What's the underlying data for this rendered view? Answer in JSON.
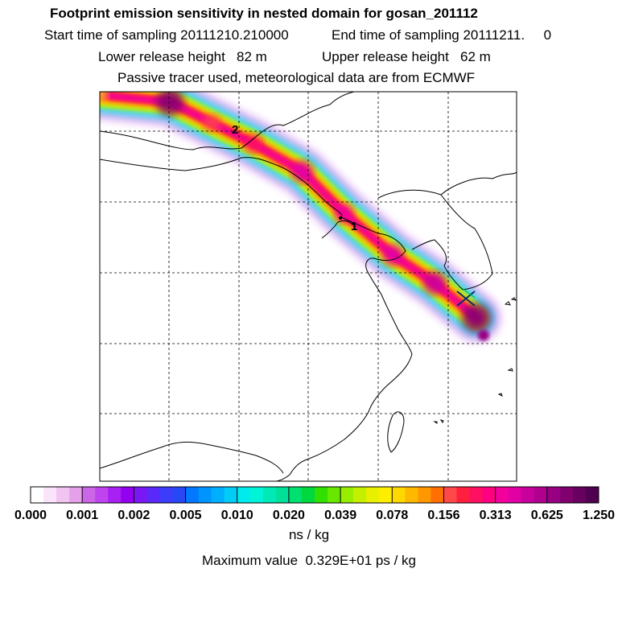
{
  "header": {
    "title": "Footprint emission sensitivity in nested domain for gosan_201112",
    "start_time": "Start time of sampling 20111210.210000",
    "end_time": "End time of sampling 20111211.     0",
    "lower_release": "Lower release height   82 m",
    "upper_release": "Upper release height   62 m",
    "tracer_info": "Passive tracer used, meteorological data are from ECMWF"
  },
  "footer": {
    "units": "ns / kg",
    "max_value": "Maximum value  0.329E+01 ps / kg"
  },
  "chart_data": {
    "type": "heatmap",
    "title": "Footprint emission sensitivity in nested domain for gosan_201112",
    "colorbar": {
      "unit": "ns / kg",
      "tick_labels": [
        "0.000",
        "0.001",
        "0.002",
        "0.005",
        "0.010",
        "0.020",
        "0.039",
        "0.078",
        "0.156",
        "0.313",
        "0.625",
        "1.250"
      ],
      "colors": [
        "#ffffff",
        "#fbe4fb",
        "#f2c4f2",
        "#e6a0ea",
        "#cc66e8",
        "#bf44ee",
        "#a820f2",
        "#9400f0",
        "#7a18f4",
        "#5a28f8",
        "#3c3cfa",
        "#2848f6",
        "#0078ff",
        "#0094ff",
        "#00b0ff",
        "#00ccf6",
        "#00ecec",
        "#00f4d8",
        "#00eab8",
        "#00e098",
        "#00e070",
        "#00d840",
        "#30e000",
        "#68e800",
        "#98ee00",
        "#c4f000",
        "#e8f000",
        "#ffee00",
        "#ffd800",
        "#ffb800",
        "#ff9800",
        "#ff7000",
        "#ff4848",
        "#ff2040",
        "#ff1060",
        "#ff0080",
        "#f4009c",
        "#e000a4",
        "#c8009c",
        "#b00090",
        "#980084",
        "#800070",
        "#680060",
        "#500050"
      ]
    },
    "plume_path": [
      {
        "lon": 1.0,
        "lat": 1.2,
        "value": 0.08
      },
      {
        "lon": 2.0,
        "lat": 1.3,
        "value": 0.9
      },
      {
        "lon": 2.6,
        "lat": 1.6,
        "value": 0.2
      },
      {
        "lon": 3.2,
        "lat": 1.9,
        "value": 0.3
      },
      {
        "lon": 3.9,
        "lat": 2.3,
        "value": 0.5
      },
      {
        "lon": 4.5,
        "lat": 2.9,
        "value": 0.35
      },
      {
        "lon": 5.2,
        "lat": 3.5,
        "value": 0.45
      },
      {
        "lon": 5.8,
        "lat": 3.9,
        "value": 0.6
      },
      {
        "lon": 6.4,
        "lat": 4.4,
        "value": 1.0
      }
    ],
    "markers": [
      {
        "label": "1",
        "lon": 4.7,
        "lat": 3.1
      },
      {
        "label": "2",
        "lon": 3.3,
        "lat": 1.55
      }
    ],
    "receptor": {
      "lon": 6.5,
      "lat": 4.65,
      "symbol": "x"
    }
  }
}
